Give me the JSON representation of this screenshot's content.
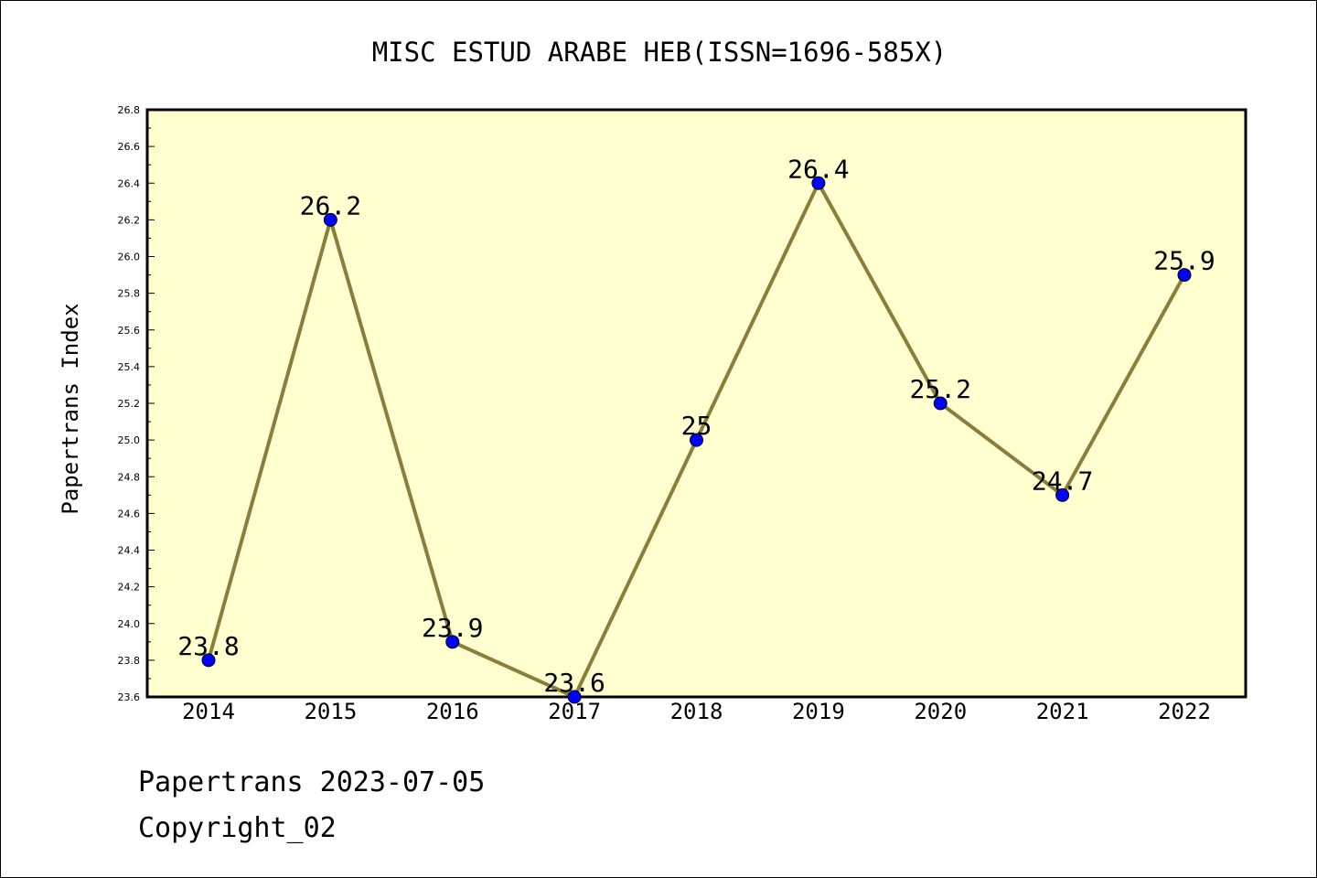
{
  "chart_data": {
    "type": "line",
    "title": "MISC ESTUD ARABE HEB(ISSN=1696-585X)",
    "xlabel": "",
    "ylabel": "Papertrans Index",
    "categories": [
      "2014",
      "2015",
      "2016",
      "2017",
      "2018",
      "2019",
      "2020",
      "2021",
      "2022"
    ],
    "series": [
      {
        "values": [
          23.8,
          26.2,
          23.9,
          23.6,
          25.0,
          26.4,
          25.2,
          24.7,
          25.9
        ],
        "labels": [
          "23.8",
          "26.2",
          "23.9",
          "23.6",
          "25",
          "26.4",
          "25.2",
          "24.7",
          "25.9"
        ]
      }
    ],
    "ylim": [
      23.6,
      26.8
    ],
    "yticks": [
      "23.6",
      "23.8",
      "24.0",
      "24.2",
      "24.4",
      "24.6",
      "24.8",
      "25.0",
      "25.2",
      "25.4",
      "25.6",
      "25.8",
      "26.0",
      "26.2",
      "26.4",
      "26.6",
      "26.8"
    ],
    "grid": false,
    "legend": "none",
    "colors": {
      "plot_background": "#ffffd0",
      "line": "#8b7d3a",
      "marker": "#0000ff",
      "axis": "#000000"
    }
  },
  "footer": {
    "line1": "Papertrans 2023-07-05",
    "line2": "Copyright_02"
  }
}
